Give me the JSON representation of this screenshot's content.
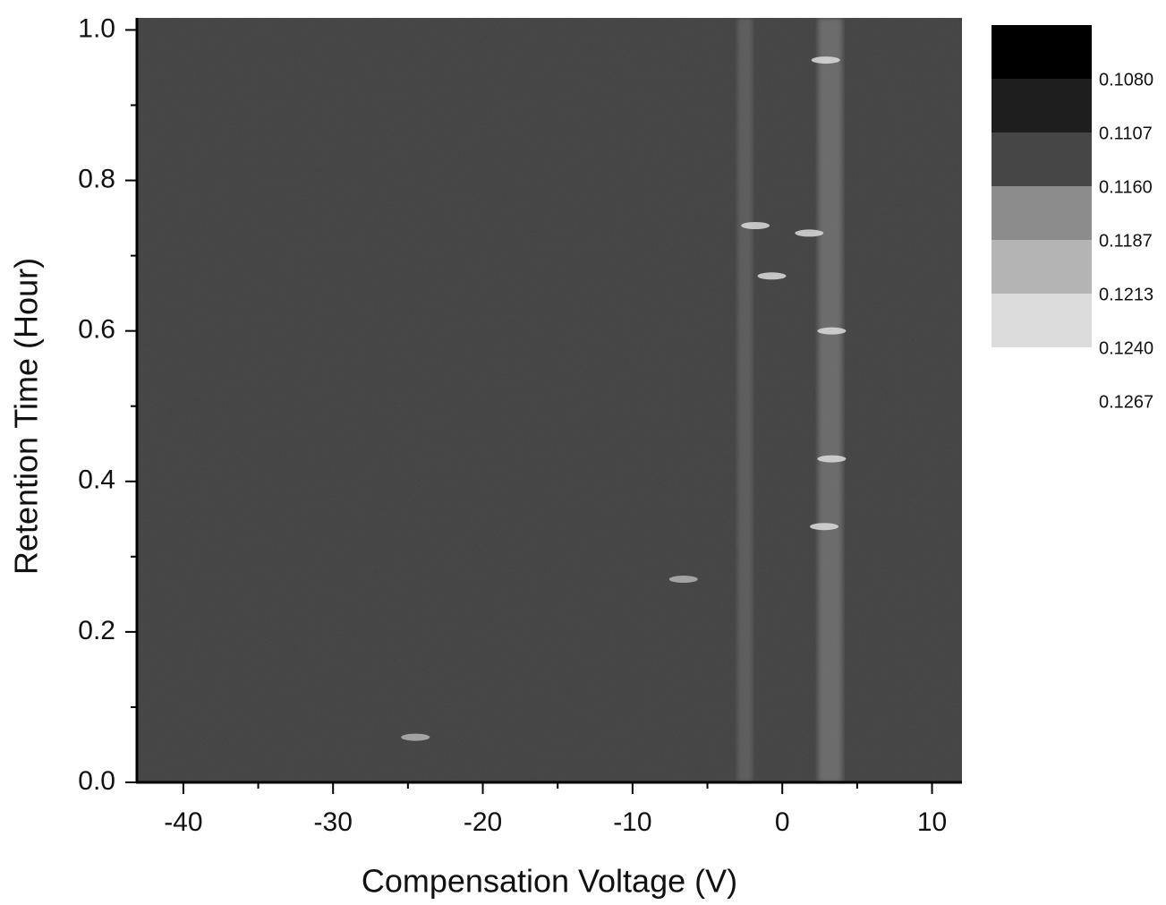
{
  "chart_data": {
    "type": "heatmap",
    "x_label": "Compensation Voltage (V)",
    "y_label": "Retention Time (Hour)",
    "xlim": [
      -43.1,
      12
    ],
    "ylim": [
      0,
      1.016
    ],
    "xticks": [
      -40,
      -30,
      -20,
      -10,
      0,
      10
    ],
    "xminorticks": [
      -35,
      -25,
      -15,
      -5,
      5
    ],
    "yticks": [
      {
        "value": 0,
        "label": "0.0"
      },
      {
        "value": 0.2,
        "label": "0.2"
      },
      {
        "value": 0.4,
        "label": "0.4"
      },
      {
        "value": 0.6,
        "label": "0.6"
      },
      {
        "value": 0.8,
        "label": "0.8"
      },
      {
        "value": 1.0,
        "label": "1.0"
      }
    ],
    "yminorticks": [
      0.1,
      0.3,
      0.5,
      0.7,
      0.9
    ],
    "background_value": 0.115,
    "bands": [
      {
        "x": [
          2.4,
          4.0
        ],
        "value": 0.1187
      },
      {
        "x": [
          -3.0,
          -2.0
        ],
        "value": 0.116
      }
    ],
    "spots": [
      {
        "x": -1.8,
        "y": 0.74,
        "value": 0.124
      },
      {
        "x": 1.8,
        "y": 0.73,
        "value": 0.124
      },
      {
        "x": -0.7,
        "y": 0.673,
        "value": 0.124
      },
      {
        "x": 2.8,
        "y": 0.34,
        "value": 0.1213
      },
      {
        "x": 2.9,
        "y": 0.96,
        "value": 0.1213
      },
      {
        "x": -24.5,
        "y": 0.06,
        "value": 0.1187
      },
      {
        "x": -6.6,
        "y": 0.27,
        "value": 0.1187
      },
      {
        "x": 3.3,
        "y": 0.6,
        "value": 0.1213
      },
      {
        "x": 3.3,
        "y": 0.43,
        "value": 0.1213
      }
    ],
    "colorbar": {
      "levels": [
        {
          "value": 0.108,
          "label": "0.1080"
        },
        {
          "value": 0.1107,
          "label": "0.1107"
        },
        {
          "value": 0.116,
          "label": "0.1160"
        },
        {
          "value": 0.1187,
          "label": "0.1187"
        },
        {
          "value": 0.1213,
          "label": "0.1213"
        },
        {
          "value": 0.124,
          "label": "0.1240"
        },
        {
          "value": 0.1267,
          "label": "0.1267"
        }
      ],
      "colors": [
        "#000000",
        "#1e1e1e",
        "#464646",
        "#8c8c8c",
        "#b4b4b4",
        "#dcdcdc"
      ]
    }
  }
}
